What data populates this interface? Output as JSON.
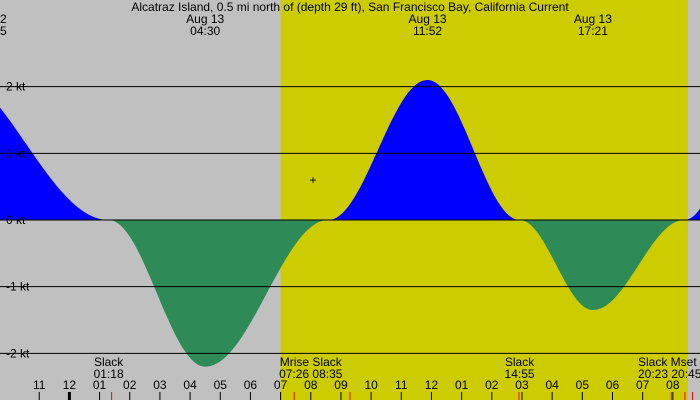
{
  "title": "Alcatraz Island, 0.5 mi north of (depth 29 ft), San Francisco Bay, California Current",
  "colors": {
    "night": "#c0c0c0",
    "day": "#cccc00",
    "flood": "#0000ff",
    "ebb": "#2e8b57",
    "gridline": "#000000",
    "sun_marker": "#ff0000"
  },
  "top_labels": [
    {
      "date": "2",
      "time": "5"
    },
    {
      "date": "Aug 13",
      "time": "04:30"
    },
    {
      "date": "Aug 13",
      "time": "11:52"
    },
    {
      "date": "Aug 13",
      "time": "17:21"
    }
  ],
  "slack_labels": [
    {
      "name": "Slack",
      "time": "01:18"
    },
    {
      "name": "Mrise Slack",
      "time": "07:26 08:35"
    },
    {
      "name": "Slack",
      "time": "14:55"
    },
    {
      "name": "Slack Mset",
      "time": "20:23 20:45"
    }
  ],
  "chart_data": {
    "type": "area",
    "title": "Alcatraz Island, 0.5 mi north of (depth 29 ft), San Francisco Bay, California Current",
    "ylabel": "",
    "xlabel": "",
    "ylim": [
      -2.7,
      3.3
    ],
    "xlim_hours": [
      -2.3,
      20.9
    ],
    "y_ticks": [
      {
        "value": 2,
        "label": "2 kt"
      },
      {
        "value": 1,
        "label": "1 kt"
      },
      {
        "value": 0,
        "label": "0 kt"
      },
      {
        "value": -1,
        "label": "-1 kt"
      },
      {
        "value": -2,
        "label": "-2 kt"
      }
    ],
    "x_ticks": [
      {
        "hour": -1,
        "label": "11"
      },
      {
        "hour": 0,
        "label": "12"
      },
      {
        "hour": 1,
        "label": "01"
      },
      {
        "hour": 2,
        "label": "02"
      },
      {
        "hour": 3,
        "label": "03"
      },
      {
        "hour": 4,
        "label": "04"
      },
      {
        "hour": 5,
        "label": "05"
      },
      {
        "hour": 6,
        "label": "06"
      },
      {
        "hour": 7,
        "label": "07"
      },
      {
        "hour": 8,
        "label": "08"
      },
      {
        "hour": 9,
        "label": "09"
      },
      {
        "hour": 10,
        "label": "10"
      },
      {
        "hour": 11,
        "label": "11"
      },
      {
        "hour": 12,
        "label": "12"
      },
      {
        "hour": 13,
        "label": "01"
      },
      {
        "hour": 14,
        "label": "02"
      },
      {
        "hour": 15,
        "label": "03"
      },
      {
        "hour": 16,
        "label": "04"
      },
      {
        "hour": 17,
        "label": "05"
      },
      {
        "hour": 18,
        "label": "06"
      },
      {
        "hour": 19,
        "label": "07"
      },
      {
        "hour": 20,
        "label": "08"
      }
    ],
    "daylight_hours": [
      7.0,
      20.5
    ],
    "sun_marker_hours": [
      1.4,
      7.45,
      9.3,
      14.9,
      19.95,
      20.4,
      20.65
    ],
    "midnight_hour": 0,
    "extremes": [
      {
        "hour": -4.2,
        "value": 2.3
      },
      {
        "hour": 1.3,
        "value": 0
      },
      {
        "hour": 4.5,
        "value": -2.2
      },
      {
        "hour": 8.58,
        "value": 0
      },
      {
        "hour": 11.87,
        "value": 2.1
      },
      {
        "hour": 14.92,
        "value": 0
      },
      {
        "hour": 17.35,
        "value": -1.35
      },
      {
        "hour": 20.38,
        "value": 0
      },
      {
        "hour": 23.3,
        "value": 2.2
      }
    ],
    "series": [
      {
        "name": "Current",
        "sample_step_hours": 0.05
      }
    ]
  }
}
